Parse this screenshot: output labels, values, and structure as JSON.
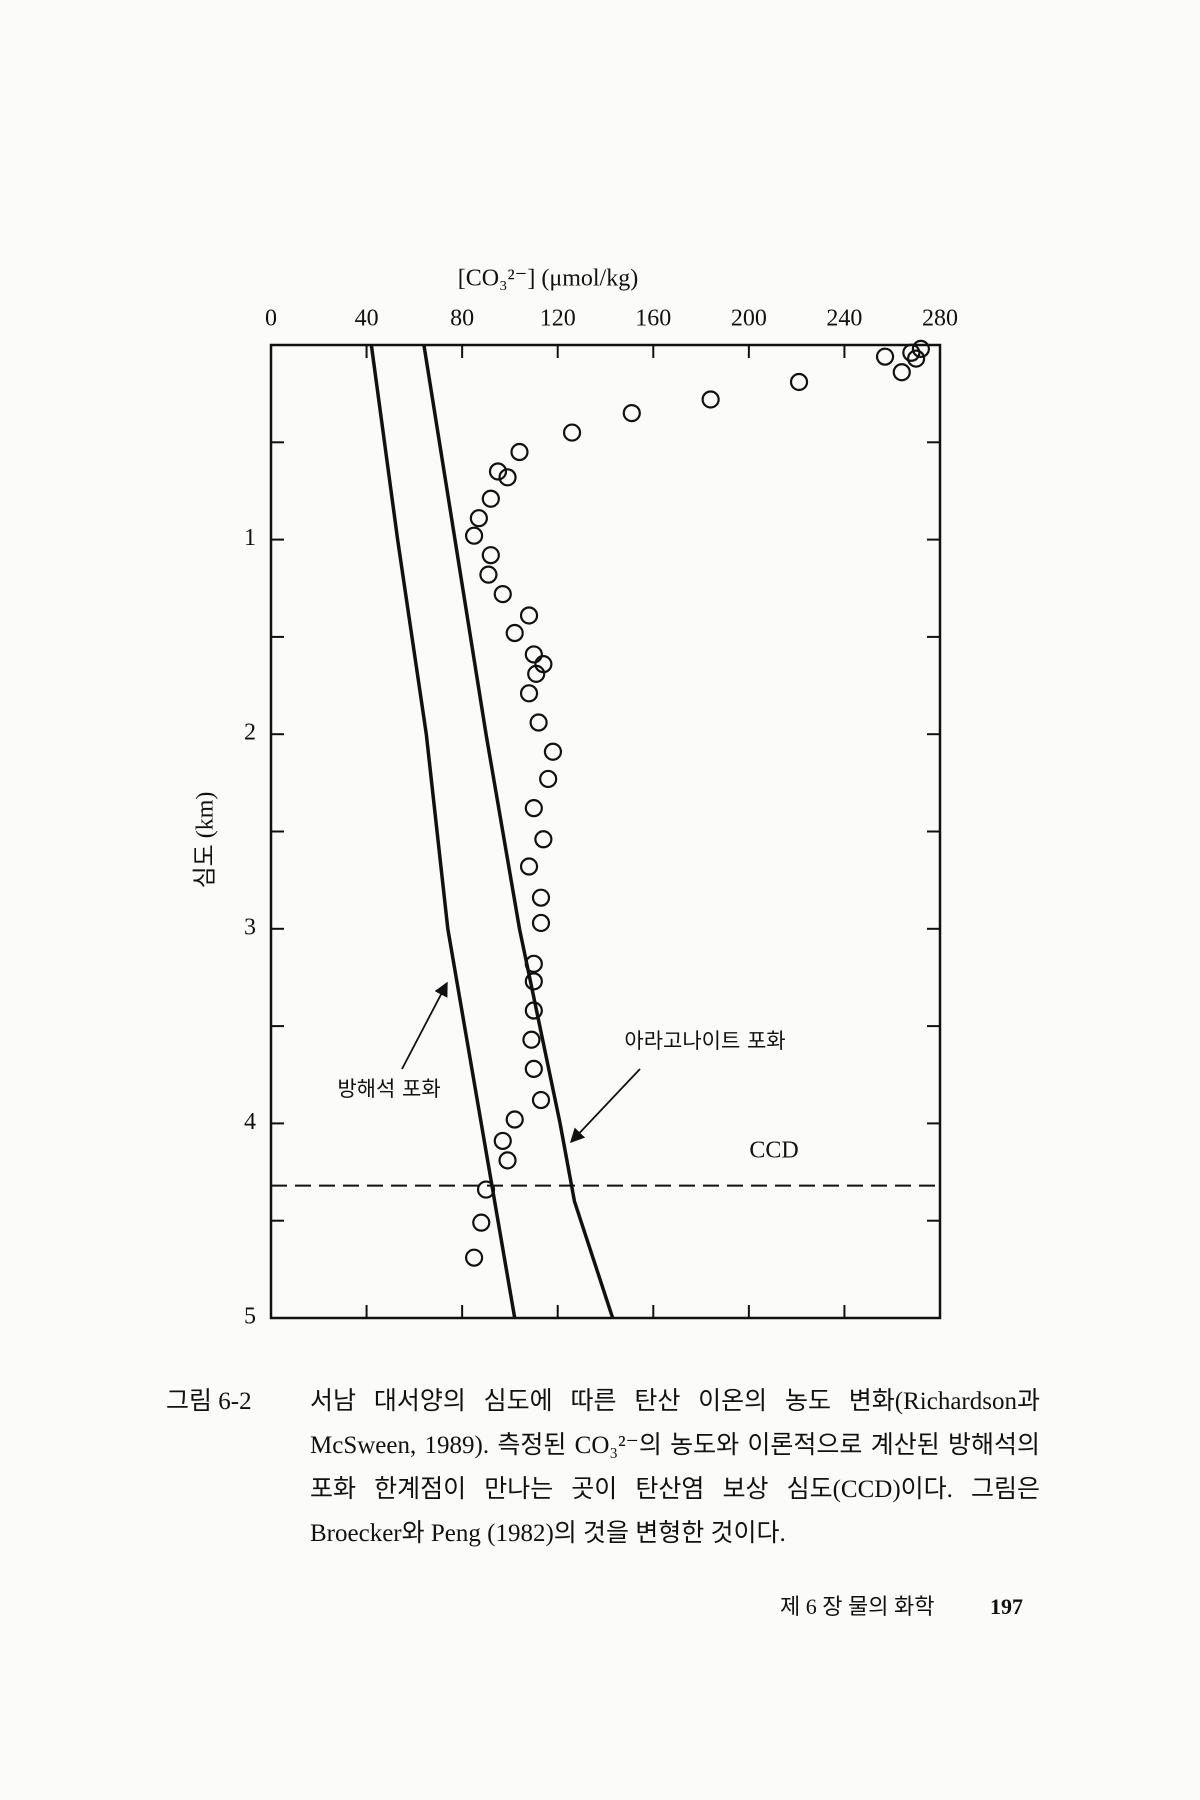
{
  "chart_data": {
    "type": "scatter",
    "x_label": "[CO₃²⁻] (μmol/kg)",
    "y_label": "심도 (km)",
    "xlim": [
      0,
      280
    ],
    "xticks": [
      0,
      40,
      80,
      120,
      160,
      200,
      240,
      280
    ],
    "ylim": [
      0,
      5
    ],
    "yticks": [
      1,
      2,
      3,
      4,
      5
    ],
    "y_inverted": true,
    "color": "#111111",
    "points": {
      "x": [
        272,
        268,
        270,
        257,
        264,
        221,
        184,
        151,
        126,
        104,
        95,
        99,
        92,
        87,
        85,
        92,
        91,
        97,
        108,
        102,
        110,
        114,
        111,
        108,
        112,
        118,
        116,
        110,
        114,
        108,
        113,
        113,
        110,
        110,
        110,
        109,
        110,
        113,
        102,
        97,
        99,
        90,
        88,
        85
      ],
      "y": [
        0.02,
        0.04,
        0.07,
        0.06,
        0.14,
        0.19,
        0.28,
        0.35,
        0.45,
        0.55,
        0.65,
        0.68,
        0.79,
        0.89,
        0.98,
        1.08,
        1.18,
        1.28,
        1.39,
        1.48,
        1.59,
        1.64,
        1.69,
        1.79,
        1.94,
        2.09,
        2.23,
        2.38,
        2.54,
        2.68,
        2.84,
        2.97,
        3.18,
        3.27,
        3.42,
        3.57,
        3.72,
        3.88,
        3.98,
        4.09,
        4.19,
        4.34,
        4.51,
        4.69
      ]
    },
    "curves": [
      {
        "label": "방해석 포화",
        "x": [
          42,
          53,
          65,
          74,
          88,
          102
        ],
        "y": [
          0,
          1,
          2,
          3,
          4,
          5
        ]
      },
      {
        "label": "아라고나이트 포화",
        "x": [
          64,
          77,
          90,
          104,
          121,
          127,
          135,
          143
        ],
        "y": [
          0,
          1,
          2,
          3,
          4,
          4.4,
          4.7,
          5
        ]
      }
    ],
    "ccd": {
      "label": "CCD",
      "value": 4.32
    }
  },
  "caption": {
    "label": "그림 6-2",
    "text": "서남 대서양의 심도에 따른 탄산 이온의 농도 변화(Richardson과 McSween, 1989). 측정된 CO₃²⁻의 농도와 이론적으로 계산된 방해석의 포화 한계점이 만나는 곳이 탄산염 보상 심도(CCD)이다. 그림은 Broecker와 Peng (1982)의 것을 변형한 것이다."
  },
  "footer": {
    "chapter": "제 6 장  물의 화학",
    "page": "197"
  }
}
